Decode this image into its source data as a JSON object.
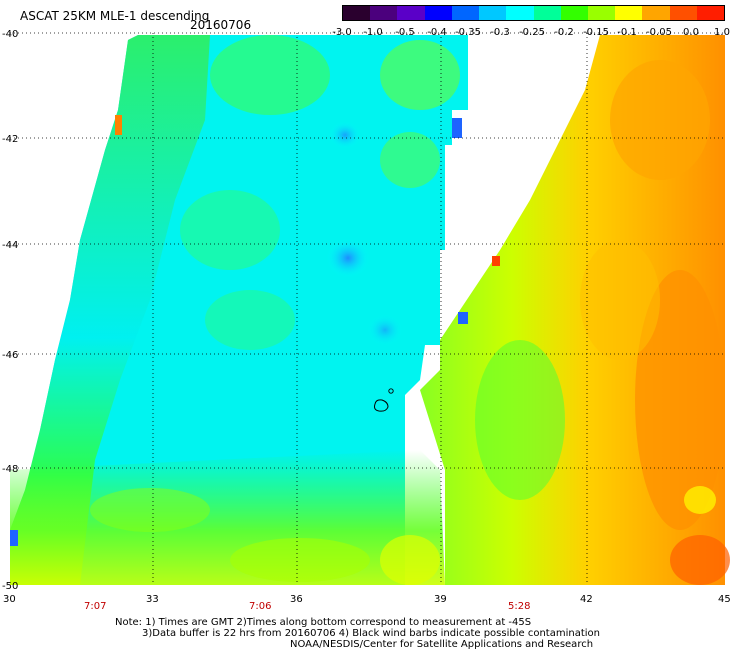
{
  "header": {
    "title": "ASCAT 25KM MLE-1 descending",
    "date": "20160706"
  },
  "colorbar": {
    "labels": [
      "-3.0",
      "-1.0",
      "-0.5",
      "-0.4",
      "-0.35",
      "-0.3",
      "-0.25",
      "-0.2",
      "-0.15",
      "-0.1",
      "-0.05",
      "0.0",
      "1.0"
    ],
    "colors": [
      "#2a002e",
      "#4b007d",
      "#5a00c8",
      "#0000ff",
      "#0066ff",
      "#00c8ff",
      "#00ffff",
      "#00ff99",
      "#33ff00",
      "#99ff00",
      "#ffff00",
      "#ffa500",
      "#ff5000",
      "#ff1e00"
    ]
  },
  "map": {
    "lat_labels": [
      "-40",
      "-42",
      "-44",
      "-46",
      "-48",
      "-50"
    ],
    "lon_labels": [
      "30",
      "33",
      "36",
      "39",
      "42",
      "45"
    ],
    "time_labels": [
      "7:07",
      "7:06",
      "5:28"
    ]
  },
  "footer": {
    "note_line1": "Note: 1) Times are GMT 2)Times along bottom correspond to measurement at -45S",
    "note_line2": "3)Data buffer is 22 hrs from 20160706 4) Black wind barbs indicate possible contamination",
    "note_line3": "NOAA/NESDIS/Center for Satellite Applications and Research"
  }
}
